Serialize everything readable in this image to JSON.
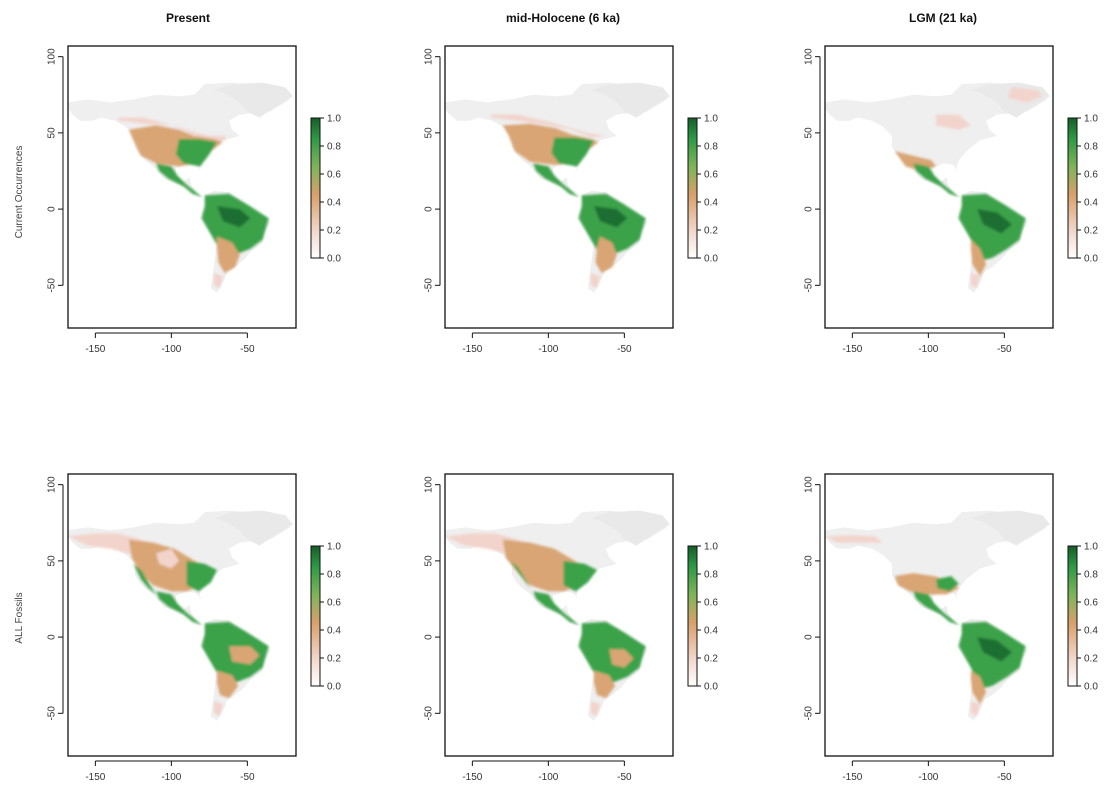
{
  "figure": {
    "columns": [
      {
        "title": "Present"
      },
      {
        "title": "mid-Holocene (6 ka)"
      },
      {
        "title": "LGM (21 ka)"
      }
    ],
    "rows": [
      {
        "label": "Current Occurrences"
      },
      {
        "label": "ALL Fossils"
      }
    ],
    "x_ticks": [
      "-150",
      "-100",
      "-50"
    ],
    "y_ticks": [
      "100",
      "50",
      "0",
      "-50"
    ],
    "colorbar_ticks": [
      "1.0",
      "0.8",
      "0.6",
      "0.4",
      "0.2",
      "0.0"
    ],
    "colors": {
      "land_background": "#efefef",
      "low_suitability": "#f2d4cc",
      "medium_suitability": "#d9a574",
      "high_suitability": "#3ba24a",
      "very_high_suitability": "#1f6e30"
    }
  },
  "panels": [
    {
      "row": 0,
      "col": 0,
      "suitability": "present-current"
    },
    {
      "row": 0,
      "col": 1,
      "suitability": "holocene-current"
    },
    {
      "row": 0,
      "col": 2,
      "suitability": "lgm-current"
    },
    {
      "row": 1,
      "col": 0,
      "suitability": "present-fossils"
    },
    {
      "row": 1,
      "col": 1,
      "suitability": "holocene-fossils"
    },
    {
      "row": 1,
      "col": 2,
      "suitability": "lgm-fossils"
    }
  ]
}
